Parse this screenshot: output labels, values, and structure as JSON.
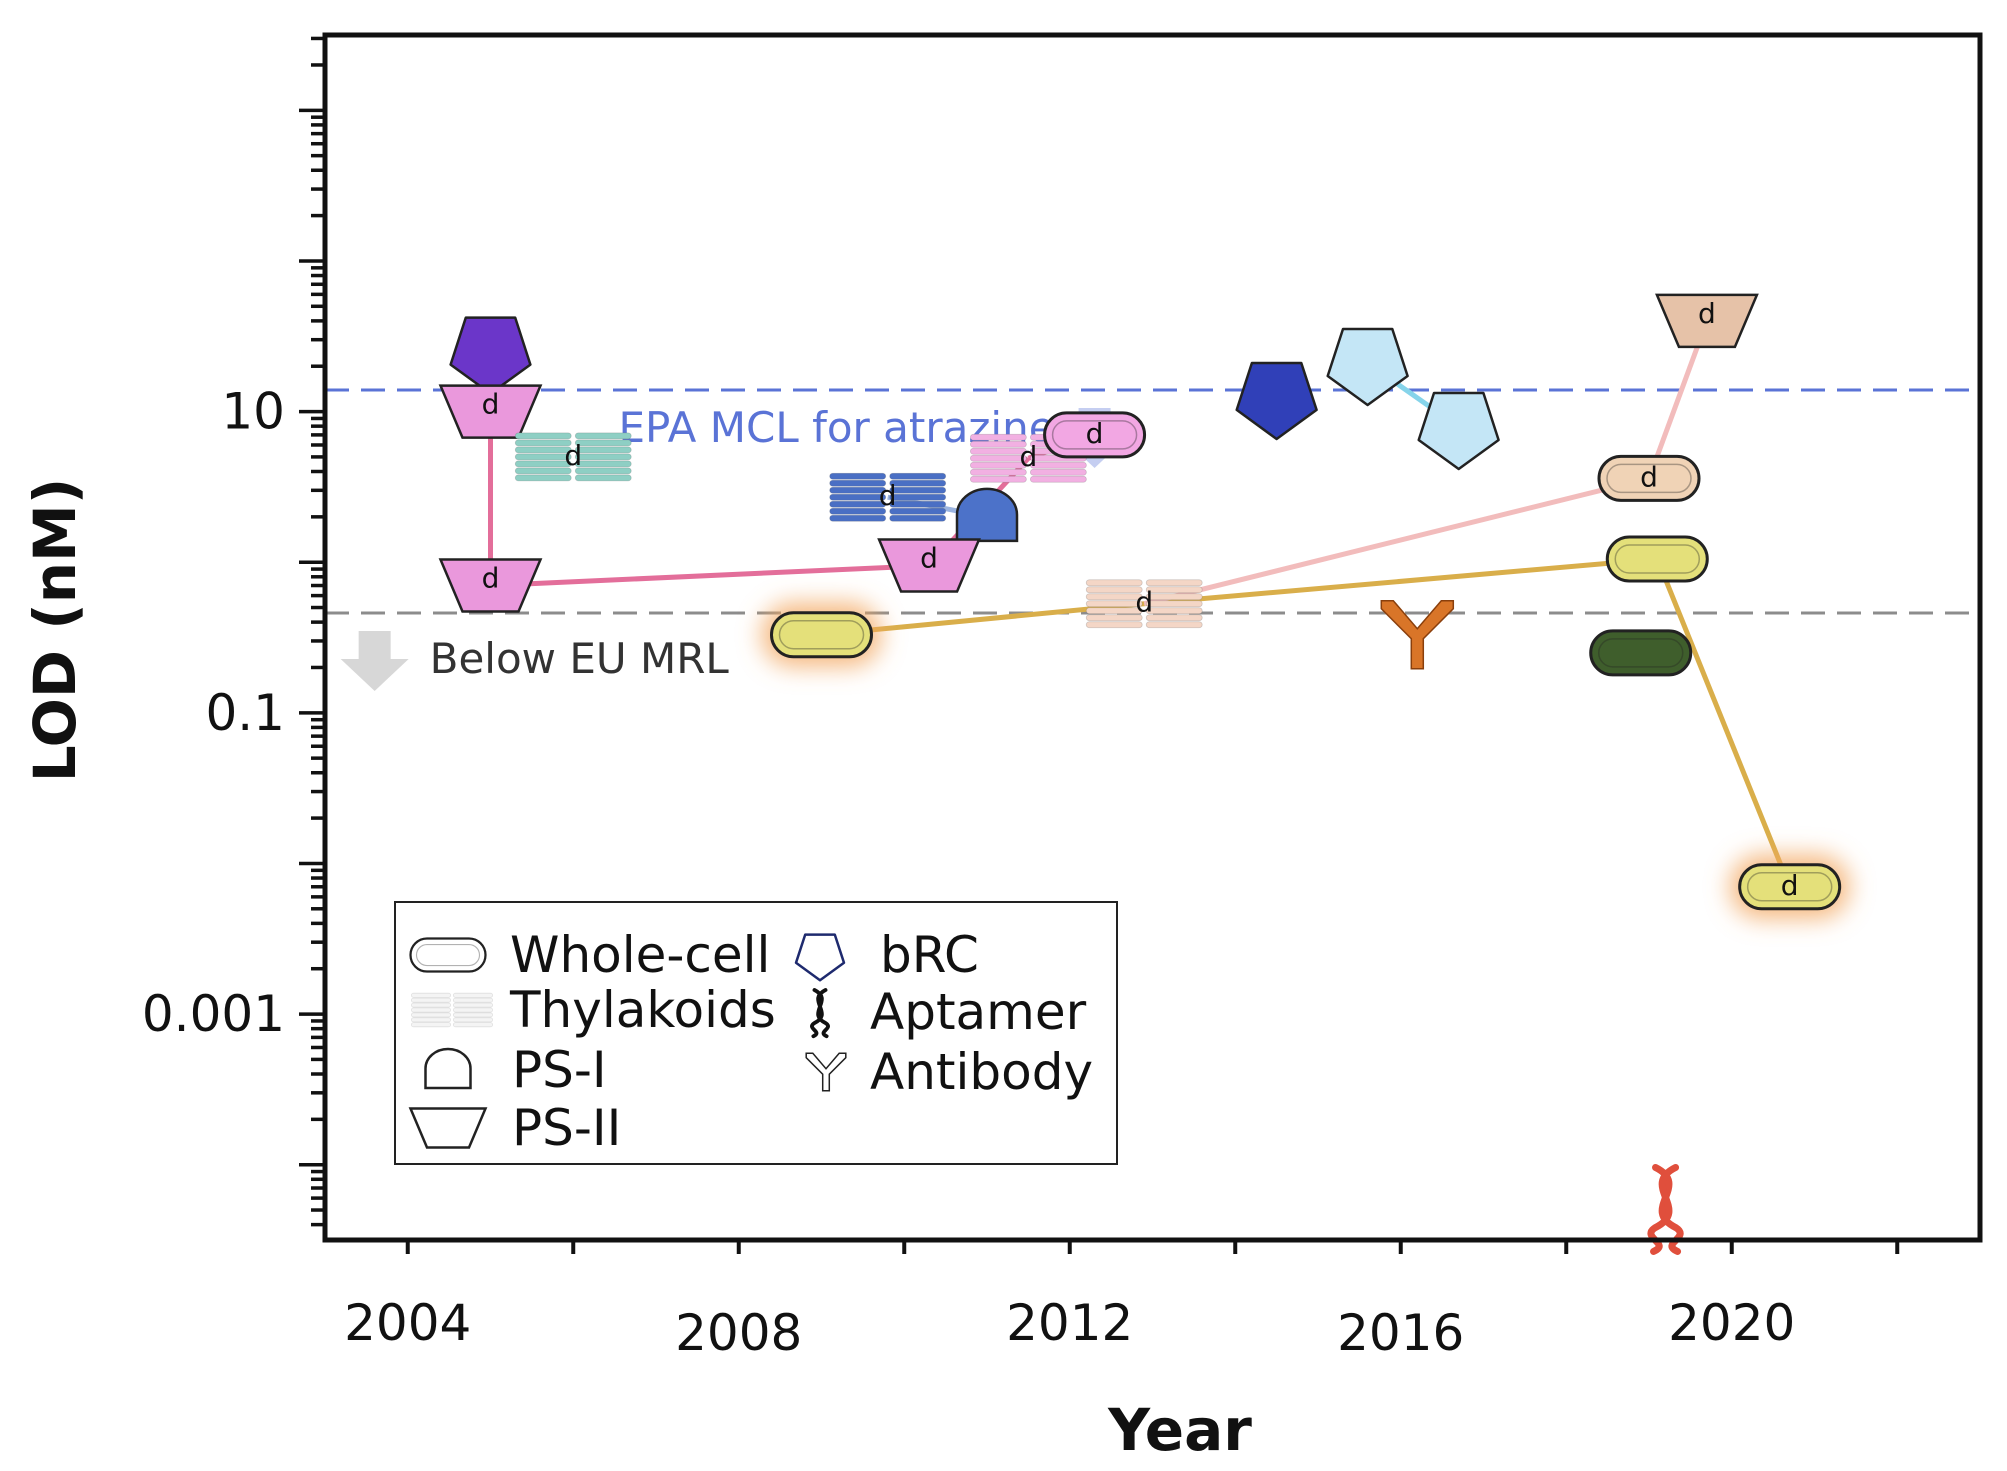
{
  "chart_data": {
    "type": "scatter",
    "title": "",
    "xlabel": "Year",
    "ylabel": "LOD (nM)",
    "xlim": [
      2003,
      2023
    ],
    "ylim_log10": [
      -4.5,
      3.5
    ],
    "x_ticks": [
      2004,
      2008,
      2012,
      2016,
      2020
    ],
    "x_tick_labels": [
      "2004",
      "2008",
      "2012",
      "2016",
      "2020"
    ],
    "y_ticks": [
      10,
      0.1,
      0.001
    ],
    "y_tick_labels": [
      "10",
      "0.1",
      "0.001"
    ],
    "marker_letter": "d",
    "reference_lines": [
      {
        "name": "epa",
        "label": "EPA MCL for atrazine",
        "value": 13.9,
        "color": "#5a73d6",
        "arrow_x": 2012.3
      },
      {
        "name": "eu",
        "label": "Below EU MRL",
        "value": 0.46,
        "color": "#8c8c8c",
        "arrow_x": 2003.6
      }
    ],
    "points": [
      {
        "id": "p1",
        "marker": "brc",
        "year": 2005.0,
        "lod": 25,
        "color": "#6b36c9",
        "direct": false
      },
      {
        "id": "p2",
        "marker": "ps2",
        "year": 2005.0,
        "lod": 10,
        "color": "#ea98dc",
        "direct": true
      },
      {
        "id": "p3",
        "marker": "ps2",
        "year": 2005.0,
        "lod": 0.7,
        "color": "#ea98dc",
        "direct": true
      },
      {
        "id": "p4",
        "marker": "thylakoids",
        "year": 2006.0,
        "lod": 5.0,
        "color": "#8ecfc4",
        "direct": true
      },
      {
        "id": "p5",
        "marker": "thylakoids",
        "year": 2009.8,
        "lod": 2.7,
        "color": "#4a6fc4",
        "direct": true
      },
      {
        "id": "p6",
        "marker": "ps1",
        "year": 2011.0,
        "lod": 2.0,
        "color": "#4c72c9",
        "direct": false
      },
      {
        "id": "p7",
        "marker": "ps2",
        "year": 2010.3,
        "lod": 0.95,
        "color": "#ea98dc",
        "direct": true
      },
      {
        "id": "p8",
        "marker": "thylakoids",
        "year": 2011.5,
        "lod": 4.9,
        "color": "#f2b0e2",
        "direct": true
      },
      {
        "id": "p9",
        "marker": "whole-cell",
        "year": 2012.3,
        "lod": 7.0,
        "color": "#f2a7e3",
        "direct": true
      },
      {
        "id": "p10",
        "marker": "whole-cell",
        "year": 2009.0,
        "lod": 0.33,
        "color": "#e4e07a",
        "direct": false,
        "glow": true
      },
      {
        "id": "p11",
        "marker": "thylakoids",
        "year": 2012.9,
        "lod": 0.53,
        "color": "#f4d6c6",
        "direct": true
      },
      {
        "id": "p12",
        "marker": "brc",
        "year": 2014.5,
        "lod": 12.5,
        "color": "#3040b8",
        "direct": false
      },
      {
        "id": "p13",
        "marker": "brc",
        "year": 2015.6,
        "lod": 21,
        "color": "#c4e6f6",
        "direct": false
      },
      {
        "id": "p14",
        "marker": "brc",
        "year": 2016.7,
        "lod": 7.9,
        "color": "#c4e6f6",
        "direct": false
      },
      {
        "id": "p15",
        "marker": "antibody",
        "year": 2016.2,
        "lod": 0.33,
        "color": "#d97528",
        "direct": false
      },
      {
        "id": "p16",
        "marker": "ps2",
        "year": 2019.7,
        "lod": 40,
        "color": "#e6c2a8",
        "direct": true
      },
      {
        "id": "p17",
        "marker": "whole-cell",
        "year": 2019.0,
        "lod": 3.6,
        "color": "#f0d3b6",
        "direct": true
      },
      {
        "id": "p18",
        "marker": "whole-cell",
        "year": 2019.1,
        "lod": 1.05,
        "color": "#e4e07a",
        "direct": false
      },
      {
        "id": "p19",
        "marker": "whole-cell",
        "year": 2018.9,
        "lod": 0.25,
        "color": "#3f5e2c",
        "direct": false
      },
      {
        "id": "p20",
        "marker": "whole-cell",
        "year": 2020.7,
        "lod": 0.007,
        "color": "#e4e07a",
        "direct": true,
        "glow": true
      },
      {
        "id": "p21",
        "marker": "aptamer",
        "year": 2019.2,
        "lod": 5.2e-05,
        "color": "#e04f3c",
        "direct": false
      }
    ],
    "connections": [
      {
        "from": "p2",
        "to": "p3",
        "color": "#e36e9a"
      },
      {
        "from": "p3",
        "to": "p7",
        "color": "#e36e9a"
      },
      {
        "from": "p7",
        "to": "p8",
        "color": "#e36e9a"
      },
      {
        "from": "p8",
        "to": "p9",
        "color": "#e36e9a"
      },
      {
        "from": "p5",
        "to": "p6",
        "color": "#9bb4e0"
      },
      {
        "from": "p10",
        "to": "p11",
        "color": "#d9ae4a"
      },
      {
        "from": "p11",
        "to": "p18",
        "color": "#d9ae4a"
      },
      {
        "from": "p18",
        "to": "p20",
        "color": "#d9ae4a"
      },
      {
        "from": "p11",
        "to": "p17",
        "color": "#f2bcbc"
      },
      {
        "from": "p17",
        "to": "p16",
        "color": "#f2bcbc"
      },
      {
        "from": "p13",
        "to": "p14",
        "color": "#86d4ea"
      }
    ],
    "legend": {
      "placement": "bottom-left",
      "items": [
        {
          "marker": "whole-cell",
          "label": "Whole-cell"
        },
        {
          "marker": "thylakoids",
          "label": "Thylakoids"
        },
        {
          "marker": "ps1",
          "label": "PS-I"
        },
        {
          "marker": "ps2",
          "label": "PS-II"
        },
        {
          "marker": "brc",
          "label": "bRC"
        },
        {
          "marker": "aptamer",
          "label": "Aptamer"
        },
        {
          "marker": "antibody",
          "label": "Antibody"
        }
      ]
    }
  }
}
